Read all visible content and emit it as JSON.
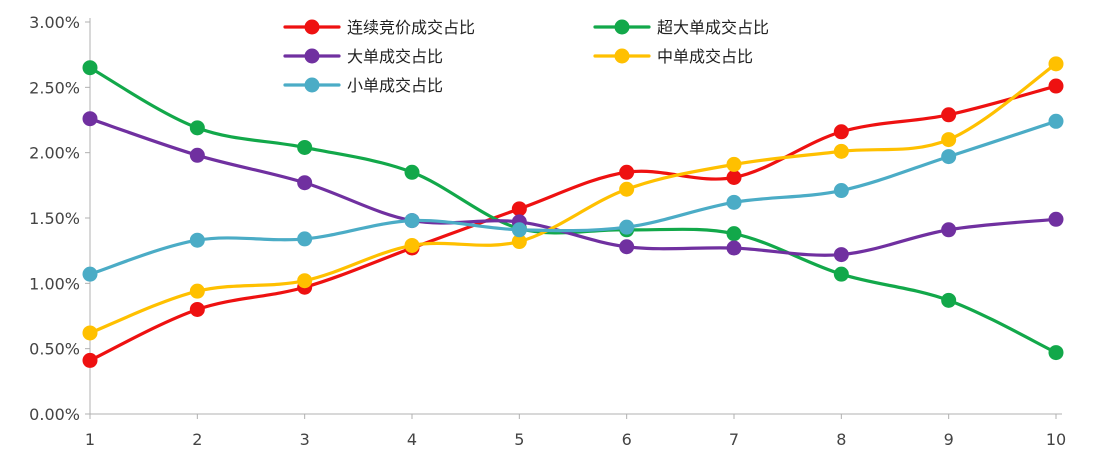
{
  "chart_data": {
    "type": "line",
    "smooth": true,
    "title": "",
    "xlabel": "",
    "ylabel": "",
    "x": [
      1,
      2,
      3,
      4,
      5,
      6,
      7,
      8,
      9,
      10
    ],
    "ylim": [
      0,
      0.03
    ],
    "y_ticks": [
      "0.00%",
      "0.50%",
      "1.00%",
      "1.50%",
      "2.00%",
      "2.50%",
      "3.00%"
    ],
    "y_tick_values": [
      0,
      0.005,
      0.01,
      0.015,
      0.02,
      0.025,
      0.03
    ],
    "grid": false,
    "legend_position": "top",
    "series": [
      {
        "name": "连续竞价成交占比",
        "color": "#ee1111",
        "values": [
          0.0041,
          0.008,
          0.0097,
          0.0127,
          0.0157,
          0.0185,
          0.0181,
          0.0216,
          0.0229,
          0.0251
        ]
      },
      {
        "name": "超大单成交占比",
        "color": "#12a84a",
        "values": [
          0.0265,
          0.0219,
          0.0204,
          0.0185,
          0.0142,
          0.0141,
          0.0138,
          0.0107,
          0.0087,
          0.0047
        ]
      },
      {
        "name": "大单成交占比",
        "color": "#7030a0",
        "values": [
          0.0226,
          0.0198,
          0.0177,
          0.0148,
          0.0147,
          0.0128,
          0.0127,
          0.0122,
          0.0141,
          0.0149
        ]
      },
      {
        "name": "中单成交占比",
        "color": "#ffc000",
        "values": [
          0.0062,
          0.0094,
          0.0102,
          0.0129,
          0.0132,
          0.0172,
          0.0191,
          0.0201,
          0.021,
          0.0268
        ]
      },
      {
        "name": "小单成交占比",
        "color": "#4bacc6",
        "values": [
          0.0107,
          0.0133,
          0.0134,
          0.0148,
          0.0141,
          0.0143,
          0.0162,
          0.0171,
          0.0197,
          0.0224
        ]
      }
    ]
  }
}
